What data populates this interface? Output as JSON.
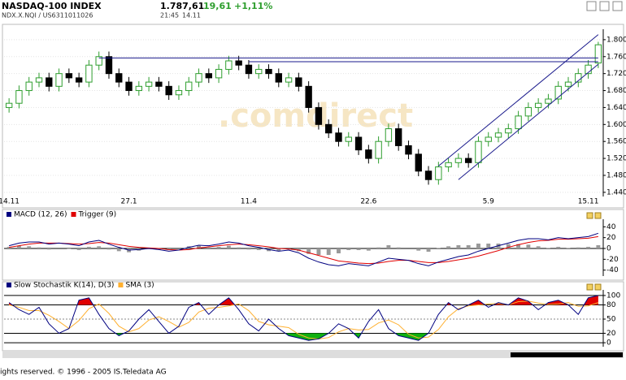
{
  "header": {
    "name": "NASDAQ-100 INDEX",
    "price": "1.787,61",
    "change": "19,61",
    "change_pct": "+1,11%",
    "id": "NDX.X.NQI / US6311011026",
    "time": "21:45",
    "date": "14.11"
  },
  "footer": "ights reserved. © 1996 - 2005 IS.Teledata AG",
  "chart_data": [
    {
      "type": "candlestick",
      "watermark": ".comdirect",
      "categories": [
        "14.11",
        null,
        null,
        null,
        null,
        null,
        null,
        null,
        null,
        null,
        null,
        null,
        "27.1",
        null,
        null,
        null,
        null,
        null,
        null,
        null,
        null,
        null,
        null,
        null,
        "11.4",
        null,
        null,
        null,
        null,
        null,
        null,
        null,
        null,
        null,
        null,
        null,
        "22.6",
        null,
        null,
        null,
        null,
        null,
        null,
        null,
        null,
        null,
        null,
        null,
        "5.9",
        null,
        null,
        null,
        null,
        null,
        null,
        null,
        null,
        null,
        "15.11",
        null
      ],
      "open": [
        1640,
        1650,
        1680,
        1700,
        1710,
        1690,
        1720,
        1710,
        1700,
        1740,
        1760,
        1720,
        1700,
        1680,
        1690,
        1700,
        1690,
        1670,
        1680,
        1700,
        1720,
        1710,
        1730,
        1750,
        1740,
        1720,
        1730,
        1720,
        1700,
        1710,
        1690,
        1640,
        1600,
        1580,
        1560,
        1570,
        1540,
        1520,
        1560,
        1590,
        1550,
        1530,
        1490,
        1470,
        1500,
        1510,
        1520,
        1510,
        1560,
        1570,
        1580,
        1590,
        1620,
        1640,
        1650,
        1660,
        1690,
        1700,
        1720,
        1745
      ],
      "high": [
        1662,
        1692,
        1712,
        1722,
        1722,
        1732,
        1732,
        1722,
        1752,
        1772,
        1772,
        1732,
        1712,
        1702,
        1712,
        1712,
        1702,
        1692,
        1712,
        1732,
        1732,
        1742,
        1762,
        1762,
        1752,
        1742,
        1742,
        1732,
        1722,
        1722,
        1702,
        1652,
        1612,
        1592,
        1582,
        1582,
        1552,
        1572,
        1602,
        1602,
        1562,
        1542,
        1502,
        1512,
        1522,
        1532,
        1532,
        1572,
        1582,
        1592,
        1602,
        1632,
        1652,
        1662,
        1672,
        1702,
        1712,
        1732,
        1752,
        1795
      ],
      "low": [
        1628,
        1638,
        1668,
        1688,
        1678,
        1678,
        1698,
        1688,
        1688,
        1728,
        1708,
        1688,
        1668,
        1668,
        1678,
        1678,
        1658,
        1658,
        1668,
        1688,
        1698,
        1698,
        1718,
        1728,
        1708,
        1708,
        1708,
        1688,
        1688,
        1678,
        1628,
        1588,
        1568,
        1548,
        1548,
        1528,
        1508,
        1508,
        1548,
        1538,
        1518,
        1478,
        1458,
        1458,
        1488,
        1498,
        1498,
        1498,
        1548,
        1558,
        1568,
        1578,
        1608,
        1628,
        1638,
        1648,
        1678,
        1688,
        1708,
        1733
      ],
      "close": [
        1650,
        1680,
        1700,
        1710,
        1690,
        1720,
        1710,
        1700,
        1740,
        1760,
        1720,
        1700,
        1680,
        1690,
        1700,
        1690,
        1670,
        1680,
        1700,
        1720,
        1710,
        1730,
        1750,
        1740,
        1720,
        1730,
        1720,
        1700,
        1710,
        1690,
        1640,
        1600,
        1580,
        1560,
        1570,
        1540,
        1520,
        1560,
        1590,
        1550,
        1530,
        1490,
        1470,
        1500,
        1510,
        1520,
        1510,
        1560,
        1570,
        1580,
        1590,
        1620,
        1640,
        1650,
        1660,
        1690,
        1700,
        1720,
        1740,
        1788
      ],
      "up_color": "#2e9e2e",
      "down_color": "#000000",
      "trendlines": [
        {
          "x": [
            9,
            59
          ],
          "y": [
            1757,
            1757
          ],
          "color": "#1a1a8c"
        },
        {
          "x": [
            24,
            59
          ],
          "y": [
            1748,
            1748
          ],
          "color": "#1a1a8c"
        },
        {
          "x": [
            43,
            59
          ],
          "y": [
            1502,
            1812
          ],
          "color": "#1a1a8c"
        },
        {
          "x": [
            45,
            59
          ],
          "y": [
            1470,
            1742
          ],
          "color": "#1a1a8c"
        }
      ],
      "ylim": [
        1434,
        1817
      ],
      "yticks": [
        {
          "value": 1440,
          "label": "1.440"
        },
        {
          "value": 1480,
          "label": "1.480"
        },
        {
          "value": 1520,
          "label": "1.520"
        },
        {
          "value": 1560,
          "label": "1.560"
        },
        {
          "value": 1600,
          "label": "1.600"
        },
        {
          "value": 1640,
          "label": "1.640"
        },
        {
          "value": 1680,
          "label": "1.680"
        },
        {
          "value": 1720,
          "label": "1.720"
        },
        {
          "value": 1760,
          "label": "1.760"
        },
        {
          "value": 1800,
          "label": "1.800"
        }
      ],
      "grid": true
    },
    {
      "type": "line",
      "series": [
        {
          "name": "MACD (12, 26)",
          "color": "#000080",
          "values": [
            5,
            10,
            12,
            12,
            8,
            10,
            8,
            5,
            12,
            15,
            8,
            2,
            -3,
            -2,
            0,
            -2,
            -5,
            -3,
            2,
            6,
            5,
            8,
            12,
            10,
            5,
            2,
            -2,
            -5,
            -3,
            -8,
            -18,
            -25,
            -30,
            -32,
            -28,
            -30,
            -32,
            -25,
            -18,
            -20,
            -22,
            -28,
            -32,
            -25,
            -20,
            -15,
            -12,
            -5,
            0,
            5,
            10,
            15,
            18,
            18,
            16,
            20,
            18,
            20,
            22,
            28
          ]
        },
        {
          "name": "Trigger (9)",
          "color": "#e00000",
          "values": [
            2,
            5,
            8,
            10,
            10,
            10,
            9,
            8,
            9,
            11,
            10,
            7,
            4,
            2,
            1,
            0,
            -2,
            -3,
            -2,
            1,
            3,
            5,
            7,
            8,
            7,
            5,
            3,
            0,
            -1,
            -3,
            -8,
            -13,
            -18,
            -23,
            -25,
            -27,
            -28,
            -27,
            -24,
            -22,
            -22,
            -24,
            -26,
            -26,
            -24,
            -21,
            -18,
            -14,
            -9,
            -4,
            2,
            7,
            11,
            14,
            15,
            17,
            17,
            18,
            19,
            22
          ]
        }
      ],
      "histogram": [
        3,
        5,
        4,
        2,
        -2,
        0,
        -1,
        -3,
        3,
        4,
        -2,
        -5,
        -7,
        -4,
        -1,
        -2,
        -3,
        0,
        4,
        5,
        2,
        3,
        5,
        2,
        -2,
        -3,
        -5,
        -5,
        -2,
        -5,
        -10,
        -12,
        -12,
        -9,
        -3,
        -3,
        -4,
        2,
        6,
        2,
        0,
        -4,
        -6,
        1,
        4,
        6,
        6,
        9,
        9,
        9,
        8,
        8,
        7,
        4,
        1,
        3,
        1,
        2,
        3,
        6
      ],
      "histogram_color": "#999999",
      "ylim": [
        -48,
        48
      ],
      "yticks": [
        -40,
        -20,
        0,
        20,
        40
      ]
    },
    {
      "type": "line",
      "series": [
        {
          "name": "Slow Stochastik K(14), D(3)",
          "color": "#000080",
          "values": [
            85,
            70,
            60,
            75,
            40,
            20,
            30,
            90,
            95,
            60,
            30,
            15,
            25,
            50,
            70,
            45,
            20,
            35,
            75,
            85,
            60,
            80,
            95,
            70,
            40,
            25,
            50,
            30,
            15,
            10,
            5,
            8,
            20,
            40,
            30,
            10,
            45,
            70,
            30,
            15,
            10,
            5,
            20,
            60,
            85,
            70,
            80,
            90,
            75,
            85,
            80,
            95,
            88,
            70,
            85,
            90,
            80,
            60,
            95,
            100
          ]
        },
        {
          "name": "SMA (3)",
          "color": "#ffb030",
          "values": [
            80,
            75,
            68,
            68,
            58,
            45,
            30,
            47,
            72,
            82,
            62,
            35,
            23,
            30,
            48,
            55,
            45,
            33,
            43,
            65,
            73,
            75,
            78,
            82,
            68,
            45,
            38,
            35,
            32,
            18,
            10,
            8,
            11,
            23,
            30,
            27,
            28,
            42,
            48,
            38,
            18,
            10,
            12,
            28,
            55,
            72,
            78,
            80,
            82,
            83,
            80,
            87,
            88,
            84,
            81,
            82,
            85,
            77,
            78,
            85
          ]
        }
      ],
      "bands": [
        {
          "above": 80,
          "color": "#e00000"
        },
        {
          "below": 20,
          "color": "#10b010"
        }
      ],
      "ylim": [
        -5,
        105
      ],
      "yticks": [
        0,
        20,
        50,
        80,
        100
      ]
    }
  ]
}
